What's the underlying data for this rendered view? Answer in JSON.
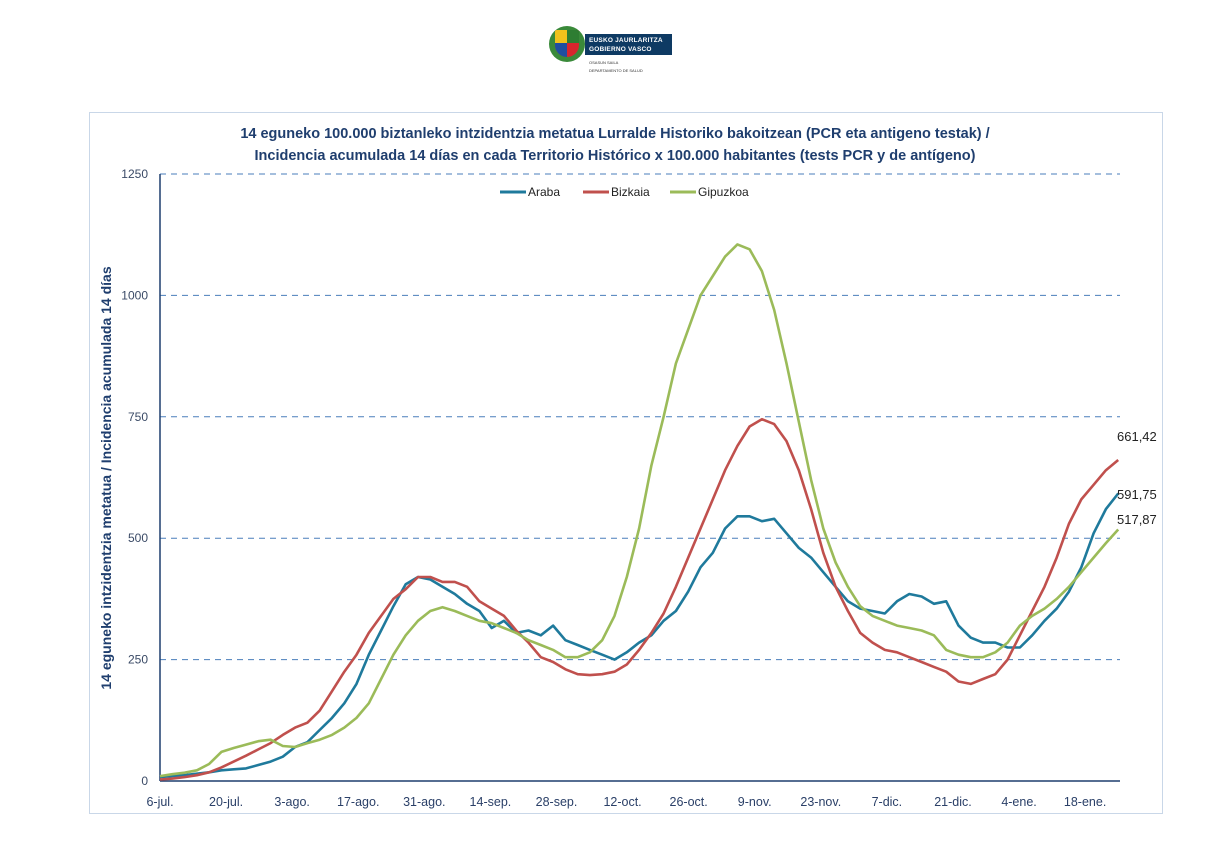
{
  "logo": {
    "line1": "EUSKO JAURLARITZA",
    "line2": "GOBIERNO VASCO",
    "dept1": "OSASUN SAILA",
    "dept2": "DEPARTAMENTO DE SALUD"
  },
  "chart_data": {
    "type": "line",
    "title": "14 eguneko 100.000 biztanleko intzidentzia metatua Lurralde Historiko bakoitzean (PCR eta antigeno  testak) /",
    "subtitle": "Incidencia acumulada  14 días en cada Territorio Histórico x 100.000 habitantes (tests PCR y de antígeno)",
    "xlabel": "",
    "ylabel": "14 eguneko intzidentzia metatua / Incidencia acumulada  14 días",
    "ylim": [
      0,
      1250
    ],
    "yticks": [
      "0",
      "250",
      "500",
      "750",
      "1000",
      "1250"
    ],
    "ytick_values": [
      0,
      250,
      500,
      750,
      1000,
      1250
    ],
    "grid": "horizontal-dashed",
    "legend_position": "top-center",
    "x_start": "6-jul.",
    "x_days_total": 203,
    "xticks": [
      "6-jul.",
      "20-jul.",
      "3-ago.",
      "17-ago.",
      "31-ago.",
      "14-sep.",
      "28-sep.",
      "12-oct.",
      "26-oct.",
      "9-nov.",
      "23-nov.",
      "7-dic.",
      "21-dic.",
      "4-ene.",
      "18-ene."
    ],
    "xtick_days": [
      0,
      14,
      28,
      42,
      56,
      70,
      84,
      98,
      112,
      126,
      140,
      154,
      168,
      182,
      196
    ],
    "x_day_step": 3.5,
    "series": [
      {
        "name": "Araba",
        "color": "#1f7a9c",
        "end_label": "591,75",
        "values": [
          8,
          10,
          12,
          15,
          18,
          22,
          24,
          26,
          33,
          40,
          50,
          70,
          80,
          105,
          130,
          160,
          200,
          260,
          310,
          360,
          405,
          420,
          415,
          400,
          385,
          365,
          350,
          315,
          330,
          305,
          310,
          300,
          320,
          290,
          280,
          270,
          260,
          250,
          265,
          285,
          300,
          330,
          350,
          390,
          440,
          470,
          520,
          545,
          545,
          535,
          540,
          510,
          480,
          460,
          430,
          400,
          370,
          355,
          350,
          345,
          370,
          385,
          380,
          365,
          370,
          320,
          295,
          285,
          285,
          275,
          275,
          300,
          330,
          355,
          390,
          440,
          510,
          560,
          592
        ]
      },
      {
        "name": "Bizkaia",
        "color": "#c0504d",
        "end_label": "661,42",
        "values": [
          3,
          5,
          8,
          12,
          18,
          28,
          40,
          52,
          65,
          78,
          95,
          110,
          120,
          145,
          185,
          225,
          260,
          305,
          340,
          375,
          395,
          420,
          420,
          410,
          410,
          400,
          370,
          355,
          340,
          310,
          285,
          255,
          245,
          230,
          220,
          218,
          220,
          225,
          240,
          270,
          305,
          345,
          400,
          460,
          520,
          580,
          640,
          690,
          730,
          745,
          735,
          700,
          640,
          560,
          470,
          400,
          350,
          305,
          285,
          270,
          265,
          255,
          245,
          235,
          225,
          205,
          200,
          210,
          220,
          250,
          300,
          350,
          400,
          460,
          530,
          580,
          610,
          640,
          661
        ]
      },
      {
        "name": "Gipuzkoa",
        "color": "#9bbb59",
        "end_label": "517,87",
        "values": [
          10,
          14,
          17,
          22,
          35,
          60,
          68,
          75,
          82,
          85,
          72,
          70,
          78,
          85,
          95,
          110,
          130,
          160,
          210,
          260,
          300,
          330,
          350,
          358,
          350,
          340,
          330,
          325,
          315,
          305,
          290,
          280,
          270,
          255,
          255,
          265,
          290,
          340,
          420,
          520,
          650,
          750,
          860,
          930,
          1000,
          1040,
          1080,
          1105,
          1095,
          1050,
          970,
          860,
          740,
          620,
          520,
          450,
          400,
          360,
          340,
          330,
          320,
          315,
          310,
          300,
          270,
          260,
          255,
          255,
          265,
          285,
          320,
          340,
          355,
          375,
          400,
          430,
          460,
          490,
          518
        ]
      }
    ]
  }
}
